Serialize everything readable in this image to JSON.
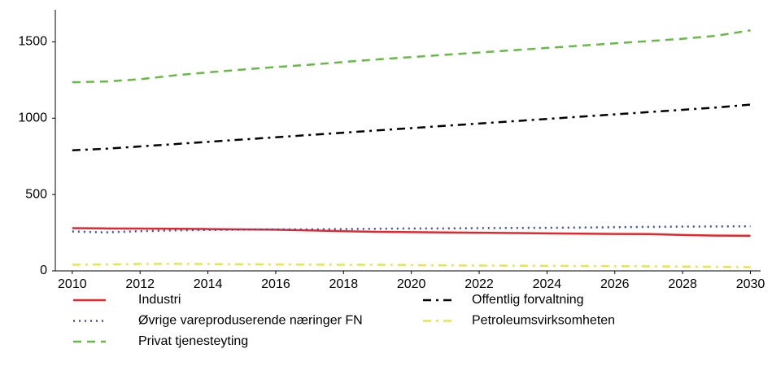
{
  "chart_data": {
    "type": "line",
    "x": [
      2010,
      2011,
      2012,
      2013,
      2014,
      2015,
      2016,
      2017,
      2018,
      2019,
      2020,
      2021,
      2022,
      2023,
      2024,
      2025,
      2026,
      2027,
      2028,
      2029,
      2030
    ],
    "xlim": [
      2009.5,
      2030.3
    ],
    "xticks": [
      2010,
      2012,
      2014,
      2016,
      2018,
      2020,
      2022,
      2024,
      2026,
      2028,
      2030
    ],
    "ylim": [
      0,
      1710
    ],
    "yticks": [
      0,
      500,
      1000,
      1500
    ],
    "grid": false,
    "legend": "bottom",
    "series": [
      {
        "name": "Industri",
        "color": "#e8262a",
        "style": "solid",
        "values": [
          280,
          278,
          277,
          276,
          274,
          272,
          270,
          265,
          260,
          256,
          254,
          252,
          250,
          248,
          246,
          244,
          242,
          241,
          235,
          231,
          230
        ]
      },
      {
        "name": "Offentlig forvaltning",
        "color": "#000000",
        "style": "dashdot",
        "values": [
          790,
          800,
          815,
          830,
          845,
          860,
          875,
          890,
          905,
          920,
          935,
          950,
          965,
          980,
          995,
          1010,
          1025,
          1040,
          1055,
          1070,
          1089
        ]
      },
      {
        "name": "Øvrige vareproduserende næringer FN",
        "color": "#3a4fa0",
        "style": "dotted",
        "values": [
          258,
          252,
          260,
          265,
          268,
          270,
          272,
          272,
          274,
          276,
          278,
          278,
          280,
          281,
          282,
          284,
          286,
          288,
          290,
          291,
          292
        ]
      },
      {
        "name": "Petroleumsvirksomheten",
        "color": "#e6e64a",
        "style": "dashdot",
        "values": [
          40,
          42,
          45,
          46,
          45,
          43,
          42,
          41,
          40,
          40,
          38,
          36,
          35,
          34,
          33,
          32,
          31,
          30,
          28,
          26,
          24
        ]
      },
      {
        "name": "Privat tjenesteyting",
        "color": "#66bb44",
        "style": "dashed",
        "values": [
          1235,
          1240,
          1255,
          1280,
          1300,
          1318,
          1335,
          1350,
          1368,
          1385,
          1400,
          1415,
          1430,
          1445,
          1460,
          1475,
          1490,
          1505,
          1520,
          1540,
          1575
        ]
      }
    ]
  }
}
